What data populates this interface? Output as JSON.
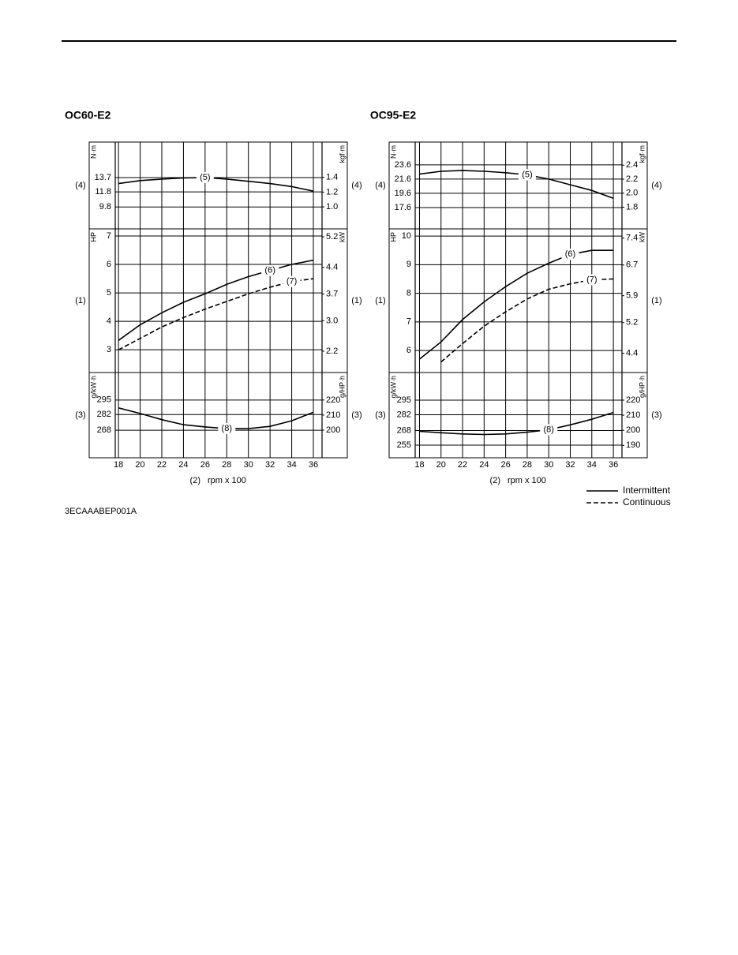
{
  "chart_data": [
    {
      "type": "line",
      "title": "OC60-E2",
      "xlabel_number": "(2)",
      "xlabel": "rpm x 100",
      "x": [
        18,
        20,
        22,
        24,
        26,
        28,
        30,
        32,
        34,
        36
      ],
      "xlim": [
        17.7,
        36.8
      ],
      "xticks": [
        18,
        20,
        22,
        24,
        26,
        28,
        30,
        32,
        34,
        36
      ],
      "grid": true,
      "panels": [
        {
          "label": "(4)",
          "ylabel": "N·m",
          "y2label": "kgf·m",
          "ylim": [
            6.9,
            18.4
          ],
          "yticks": [
            9.8,
            11.8,
            13.7
          ],
          "y2lim": [
            0.7,
            1.88
          ],
          "y2ticks": [
            {
              "value": 1,
              "label": "1.0"
            },
            1.2,
            1.4
          ],
          "series": [
            {
              "name": "(5)",
              "style": "solid",
              "color": "#000000",
              "values": [
                12.9,
                13.3,
                13.5,
                13.65,
                13.7,
                13.5,
                13.2,
                12.9,
                12.5,
                11.9
              ]
            }
          ]
        },
        {
          "label": "(1)",
          "ylabel": "HP",
          "y2label": "kW",
          "ylim": [
            2.2,
            7.25
          ],
          "yticks": [
            3,
            4,
            5,
            6,
            7
          ],
          "y2lim": [
            1.64,
            5.41
          ],
          "y2ticks": [
            2.2,
            {
              "value": 3,
              "label": "3.0"
            },
            3.7,
            4.4,
            5.2
          ],
          "series": [
            {
              "name": "(6)",
              "style": "solid",
              "color": "#000000",
              "values": [
                3.33,
                3.88,
                4.3,
                4.67,
                4.97,
                5.3,
                5.57,
                5.79,
                6.0,
                6.15
              ]
            },
            {
              "name": "(7)",
              "style": "dashed",
              "color": "#000000",
              "values": [
                3.0,
                3.4,
                3.8,
                4.13,
                4.43,
                4.7,
                4.97,
                5.2,
                5.4,
                5.5
              ]
            }
          ]
        },
        {
          "label": "(3)",
          "ylabel": "g/kW·h",
          "y2label": "g/HP·h",
          "ylim": [
            243.5,
            319.5
          ],
          "yticks": [
            268,
            282,
            295
          ],
          "y2lim": [
            181.6,
            238.3
          ],
          "y2ticks": [
            200,
            210,
            220
          ],
          "series": [
            {
              "name": "(8)",
              "style": "solid",
              "color": "#000000",
              "values": [
                288,
                283,
                277.5,
                273,
                271,
                269.5,
                269.5,
                271.5,
                276.5,
                284
              ]
            }
          ]
        }
      ]
    },
    {
      "type": "line",
      "title": "OC95-E2",
      "xlabel_number": "(2)",
      "xlabel": "rpm x 100",
      "x": [
        18,
        20,
        22,
        24,
        26,
        28,
        30,
        32,
        34,
        36
      ],
      "xlim": [
        17.6,
        36.8
      ],
      "xticks": [
        18,
        20,
        22,
        24,
        26,
        28,
        30,
        32,
        34,
        36
      ],
      "grid": true,
      "panels": [
        {
          "label": "(4)",
          "ylabel": "N·m",
          "y2label": "kgf·m",
          "ylim": [
            14.6,
            26.8
          ],
          "yticks": [
            17.6,
            19.6,
            21.6,
            23.6
          ],
          "y2lim": [
            1.49,
            2.73
          ],
          "y2ticks": [
            1.8,
            {
              "value": 2,
              "label": "2.0"
            },
            2.2,
            2.4
          ],
          "series": [
            {
              "name": "(5)",
              "style": "solid",
              "color": "#000000",
              "values": [
                22.3,
                22.7,
                22.8,
                22.7,
                22.5,
                22.2,
                21.6,
                20.8,
                20.0,
                18.9
              ]
            }
          ]
        },
        {
          "label": "(1)",
          "ylabel": "HP",
          "y2label": "kW",
          "ylim": [
            5.23,
            10.25
          ],
          "yticks": [
            6,
            7,
            8,
            9,
            10
          ],
          "y2lim": [
            3.9,
            7.64
          ],
          "y2ticks": [
            4.4,
            5.2,
            5.9,
            6.7,
            7.4
          ],
          "series": [
            {
              "name": "(6)",
              "style": "solid",
              "color": "#000000",
              "values": [
                5.7,
                6.3,
                7.08,
                7.7,
                8.23,
                8.7,
                9.05,
                9.36,
                9.5,
                9.5
              ]
            },
            {
              "name": "(7)",
              "style": "dashed",
              "color": "#000000",
              "values": [
                null,
                5.6,
                6.24,
                6.85,
                7.35,
                7.8,
                8.14,
                8.33,
                8.47,
                8.5
              ]
            }
          ]
        },
        {
          "label": "(3)",
          "ylabel": "g/kW·h",
          "y2label": "g/HP·h",
          "ylim": [
            243.8,
            319.5
          ],
          "yticks": [
            255,
            268,
            282,
            295
          ],
          "y2lim": [
            181.8,
            238.3
          ],
          "y2ticks": [
            190,
            200,
            210,
            220
          ],
          "series": [
            {
              "name": "(8)",
              "style": "solid",
              "color": "#000000",
              "values": [
                267.3,
                266,
                265,
                264.5,
                265,
                266.5,
                268.7,
                273,
                278,
                284
              ]
            }
          ]
        }
      ]
    }
  ],
  "legend": [
    {
      "label": "Intermittent",
      "style": "solid"
    },
    {
      "label": "Continuous",
      "style": "dashed"
    }
  ],
  "footer": "3ECAAABEP001A"
}
